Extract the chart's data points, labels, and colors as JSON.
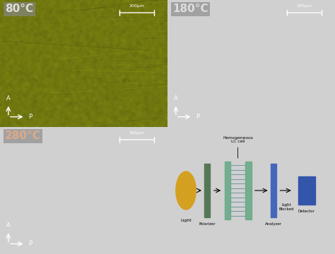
{
  "fig_w": 4.74,
  "fig_h": 3.6,
  "fig_bg": "#d0d0d0",
  "panel1_label": "80°C",
  "panel1_label_color": "#dddddd",
  "panel1_label_bg": "#888888",
  "panel2_label": "180°C",
  "panel2_label_color": "#dddddd",
  "panel2_label_bg": "#888888",
  "panel3_label": "280°C",
  "panel3_label_color": "#ddaa88",
  "panel3_label_bg": "#888888",
  "scalebar_color": "#ffffff",
  "scalebar_label": "200μm",
  "ap_color": "#ffffff",
  "panel_bg_dark": "#000000",
  "diagram_bg": "#eeeeee",
  "light_color": "#d4a020",
  "polarizer_color": "#557755",
  "lc_left_color": "#6aaa88",
  "lc_right_color": "#6aaa88",
  "lc_line_color": "#558899",
  "analyzer_color": "#4466bb",
  "detector_color": "#3355aa",
  "olive_base": [
    0.44,
    0.47,
    0.06
  ],
  "noise_scale": 0.07,
  "streak_count": 50
}
